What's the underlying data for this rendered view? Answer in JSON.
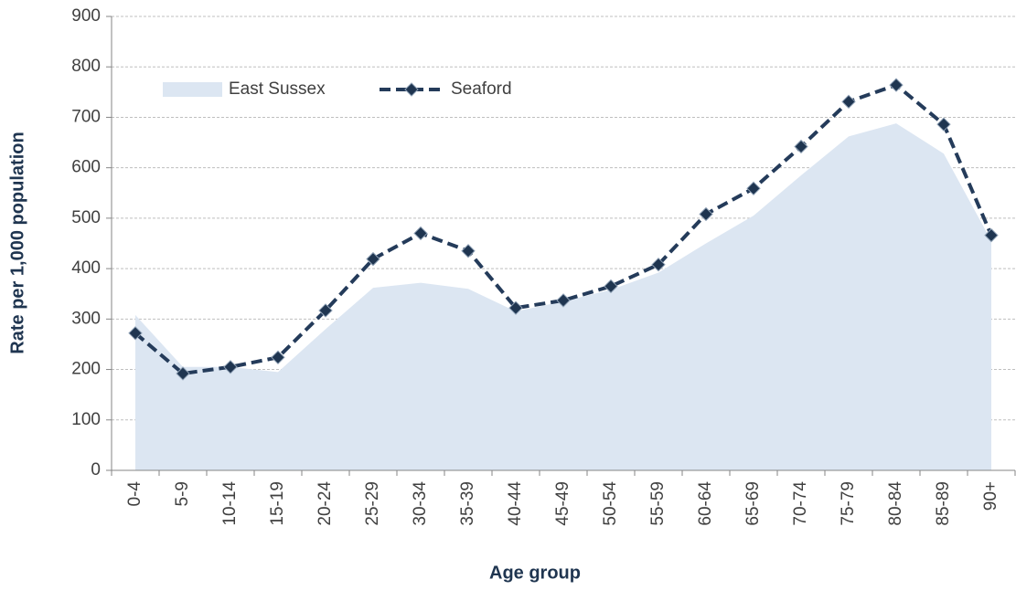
{
  "chart_data": {
    "type": "line",
    "x_label": "Age group",
    "y_label": "Rate per 1,000 population",
    "categories": [
      "0-4",
      "5-9",
      "10-14",
      "15-19",
      "20-24",
      "25-29",
      "30-34",
      "35-39",
      "40-44",
      "45-49",
      "50-54",
      "55-59",
      "60-64",
      "65-69",
      "70-74",
      "75-79",
      "80-84",
      "85-89",
      "90+"
    ],
    "series": [
      {
        "name": "East Sussex",
        "type": "area",
        "color": "#dce6f2",
        "values": [
          308,
          205,
          205,
          195,
          280,
          362,
          372,
          360,
          315,
          335,
          358,
          392,
          450,
          505,
          585,
          662,
          688,
          628,
          455
        ]
      },
      {
        "name": "Seaford",
        "type": "line",
        "color": "#243b5a",
        "values": [
          272,
          192,
          205,
          224,
          317,
          419,
          470,
          435,
          322,
          337,
          365,
          408,
          508,
          559,
          642,
          731,
          764,
          686,
          466
        ]
      }
    ],
    "ylim": [
      0,
      900
    ],
    "yticks": [
      0,
      100,
      200,
      300,
      400,
      500,
      600,
      700,
      800,
      900
    ],
    "grid": true,
    "legend": "top-left"
  }
}
